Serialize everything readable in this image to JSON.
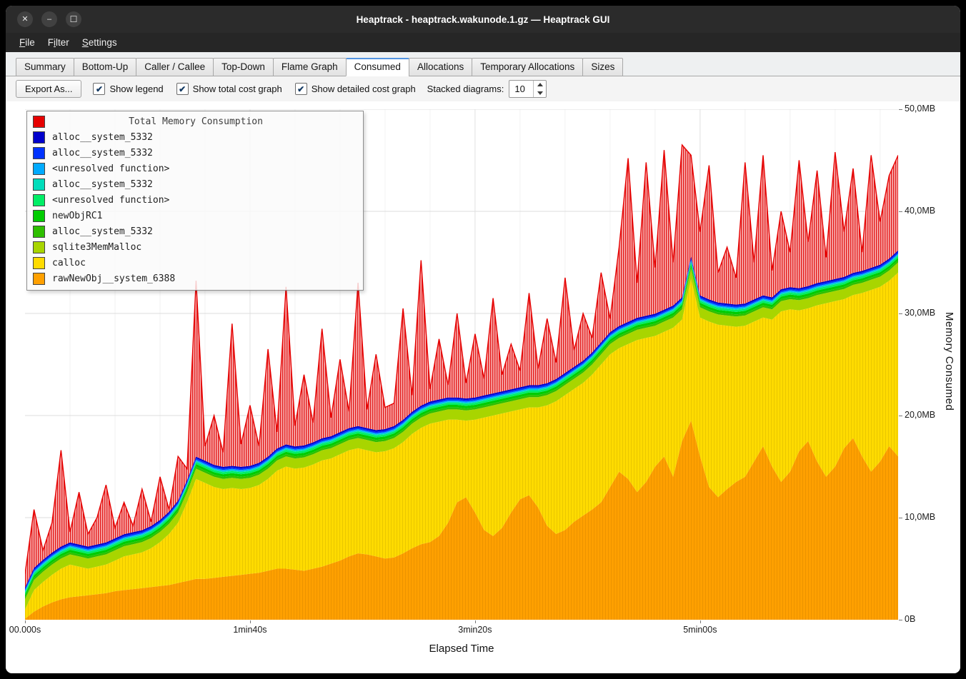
{
  "window": {
    "title": "Heaptrack - heaptrack.wakunode.1.gz — Heaptrack GUI",
    "controls": {
      "close": "✕",
      "minimize": "–",
      "maximize": "☐"
    }
  },
  "menubar": {
    "items": [
      {
        "label": "File",
        "accel_index": 0
      },
      {
        "label": "Filter",
        "accel_index": 1
      },
      {
        "label": "Settings",
        "accel_index": 0
      }
    ]
  },
  "tabs": {
    "items": [
      "Summary",
      "Bottom-Up",
      "Caller / Callee",
      "Top-Down",
      "Flame Graph",
      "Consumed",
      "Allocations",
      "Temporary Allocations",
      "Sizes"
    ],
    "active": "Consumed"
  },
  "toolbar": {
    "export_button": "Export As...",
    "check_glyph": "✔",
    "checkboxes": [
      {
        "label": "Show legend",
        "checked": true
      },
      {
        "label": "Show total cost graph",
        "checked": true
      },
      {
        "label": "Show detailed cost graph",
        "checked": true
      }
    ],
    "stacked_diagrams_label": "Stacked diagrams:",
    "stacked_diagrams_value": "10"
  },
  "chart_data": {
    "type": "area",
    "title": "Total Memory Consumption",
    "xlabel": "Elapsed Time",
    "ylabel": "Memory Consumed",
    "units": "MB",
    "xlim": [
      0,
      388
    ],
    "ylim": [
      0,
      50
    ],
    "x_ticks": [
      {
        "t": 0,
        "label": "00.000s"
      },
      {
        "t": 100,
        "label": "1min40s"
      },
      {
        "t": 200,
        "label": "3min20s"
      },
      {
        "t": 300,
        "label": "5min00s"
      }
    ],
    "y_ticks": [
      {
        "v": 0,
        "label": "0B"
      },
      {
        "v": 10,
        "label": "10,0MB"
      },
      {
        "v": 20,
        "label": "20,0MB"
      },
      {
        "v": 30,
        "label": "30,0MB"
      },
      {
        "v": 40,
        "label": "40,0MB"
      },
      {
        "v": 50,
        "label": "50,0MB"
      }
    ],
    "x": [
      0,
      4,
      8,
      12,
      16,
      20,
      24,
      28,
      32,
      36,
      40,
      44,
      48,
      52,
      56,
      60,
      64,
      68,
      72,
      76,
      80,
      84,
      88,
      92,
      96,
      100,
      104,
      108,
      112,
      116,
      120,
      124,
      128,
      132,
      136,
      140,
      144,
      148,
      152,
      156,
      160,
      164,
      168,
      172,
      176,
      180,
      184,
      188,
      192,
      196,
      200,
      204,
      208,
      212,
      216,
      220,
      224,
      228,
      232,
      236,
      240,
      244,
      248,
      252,
      256,
      260,
      264,
      268,
      272,
      276,
      280,
      284,
      288,
      292,
      296,
      300,
      304,
      308,
      312,
      316,
      320,
      324,
      328,
      332,
      336,
      340,
      344,
      348,
      352,
      356,
      360,
      364,
      368,
      372,
      376,
      380,
      384,
      388
    ],
    "stacked_series": [
      {
        "name": "rawNewObj__system_6388",
        "color": "#ffa000",
        "top": [
          0.1,
          0.8,
          1.3,
          1.7,
          2.0,
          2.2,
          2.3,
          2.4,
          2.5,
          2.6,
          2.8,
          2.9,
          3.0,
          3.1,
          3.2,
          3.3,
          3.4,
          3.6,
          3.8,
          4.0,
          4.0,
          4.1,
          4.2,
          4.3,
          4.4,
          4.5,
          4.6,
          4.8,
          5.0,
          5.0,
          4.9,
          4.8,
          5.0,
          5.2,
          5.5,
          5.8,
          6.2,
          6.5,
          6.4,
          6.2,
          6.0,
          6.1,
          6.5,
          7.0,
          7.4,
          7.6,
          8.2,
          9.5,
          11.5,
          12.0,
          10.5,
          8.8,
          8.2,
          9.0,
          10.5,
          11.8,
          12.2,
          11.0,
          9.2,
          8.4,
          8.8,
          9.6,
          10.2,
          10.8,
          11.5,
          13.0,
          14.5,
          13.8,
          12.5,
          13.5,
          15.0,
          16.0,
          14.0,
          17.5,
          19.5,
          16.0,
          13.0,
          12.0,
          12.8,
          13.5,
          14.0,
          15.5,
          17.0,
          15.0,
          13.5,
          14.5,
          16.5,
          17.5,
          15.5,
          14.0,
          15.0,
          16.8,
          17.8,
          16.0,
          14.5,
          15.5,
          17.0,
          16.0
        ]
      },
      {
        "name": "calloc",
        "color": "#ffdb00",
        "top": [
          1.0,
          2.9,
          3.7,
          4.4,
          5.0,
          5.4,
          5.2,
          5.0,
          5.2,
          5.4,
          5.8,
          6.2,
          6.4,
          6.6,
          7.0,
          7.6,
          8.4,
          9.5,
          11.5,
          13.8,
          13.4,
          13.0,
          12.8,
          12.9,
          12.8,
          12.9,
          13.2,
          13.8,
          14.6,
          15.0,
          14.8,
          14.9,
          15.2,
          15.6,
          15.8,
          16.2,
          16.6,
          16.8,
          16.6,
          16.4,
          16.5,
          16.8,
          17.4,
          18.2,
          18.8,
          19.2,
          19.4,
          19.6,
          19.6,
          19.5,
          19.6,
          19.8,
          20.0,
          20.2,
          20.4,
          20.6,
          20.8,
          20.8,
          21.0,
          21.4,
          22.0,
          22.6,
          23.2,
          24.0,
          25.0,
          26.0,
          26.6,
          27.0,
          27.4,
          27.6,
          27.8,
          28.2,
          28.6,
          29.4,
          33.4,
          29.6,
          29.2,
          28.9,
          28.8,
          28.7,
          28.8,
          29.2,
          29.6,
          29.4,
          30.2,
          30.4,
          30.3,
          30.5,
          30.8,
          31.0,
          31.2,
          31.4,
          31.8,
          32.0,
          32.3,
          32.6,
          33.2,
          34.0
        ]
      },
      {
        "name": "sqlite3MemMalloc",
        "color": "#a8d500",
        "thickness": 1.0
      },
      {
        "name": "alloc__system_5332",
        "color": "#2ebf00",
        "thickness": 0.2
      },
      {
        "name": "newObjRC1",
        "color": "#00cc00",
        "thickness": 0.25
      },
      {
        "name": "<unresolved function>",
        "color": "#00ee66",
        "thickness": 0.2
      },
      {
        "name": "alloc__system_5332",
        "color": "#00ddbb",
        "thickness": 0.1
      },
      {
        "name": "<unresolved function>",
        "color": "#00aaff",
        "thickness": 0.12
      },
      {
        "name": "alloc__system_5332",
        "color": "#0033ff",
        "thickness": 0.15
      },
      {
        "name": "alloc__system_5332",
        "color": "#0000cc",
        "thickness": 0.15
      }
    ],
    "total_series": {
      "name": "Total Memory Consumption",
      "color": "#e60000",
      "values": [
        4.5,
        10.8,
        6.8,
        9.5,
        16.6,
        8.6,
        12.5,
        8.4,
        10.0,
        13.2,
        9.0,
        11.5,
        9.2,
        12.8,
        9.6,
        14.0,
        10.8,
        16.0,
        14.8,
        33.2,
        17.0,
        20.0,
        16.4,
        29.0,
        17.2,
        21.0,
        17.0,
        26.5,
        18.4,
        32.6,
        19.0,
        24.0,
        19.3,
        28.5,
        19.8,
        25.5,
        20.4,
        33.0,
        20.6,
        26.0,
        20.8,
        21.2,
        30.5,
        22.0,
        35.2,
        22.6,
        27.5,
        23.0,
        30.0,
        23.2,
        28.0,
        23.6,
        31.5,
        24.0,
        27.0,
        24.4,
        32.0,
        24.6,
        29.5,
        25.2,
        33.5,
        26.4,
        30.0,
        27.6,
        34.0,
        29.5,
        36.5,
        45.2,
        33.0,
        44.8,
        34.5,
        46.0,
        35.0,
        46.5,
        45.5,
        38.0,
        44.5,
        34.0,
        36.5,
        33.5,
        44.8,
        35.0,
        45.5,
        34.2,
        40.0,
        36.0,
        45.0,
        37.0,
        44.0,
        35.5,
        45.8,
        38.0,
        44.2,
        36.0,
        45.5,
        39.0,
        43.5,
        45.5
      ]
    },
    "legend": [
      {
        "label": "Total Memory Consumption",
        "color": "#e60000"
      },
      {
        "label": "alloc__system_5332",
        "color": "#0000cc"
      },
      {
        "label": "alloc__system_5332",
        "color": "#0033ff"
      },
      {
        "label": "<unresolved function>",
        "color": "#00aaff"
      },
      {
        "label": "alloc__system_5332",
        "color": "#00ddbb"
      },
      {
        "label": "<unresolved function>",
        "color": "#00ee66"
      },
      {
        "label": "newObjRC1",
        "color": "#00cc00"
      },
      {
        "label": "alloc__system_5332",
        "color": "#2ebf00"
      },
      {
        "label": "sqlite3MemMalloc",
        "color": "#a8d500"
      },
      {
        "label": "calloc",
        "color": "#ffdb00"
      },
      {
        "label": "rawNewObj__system_6388",
        "color": "#ffa000"
      }
    ]
  }
}
